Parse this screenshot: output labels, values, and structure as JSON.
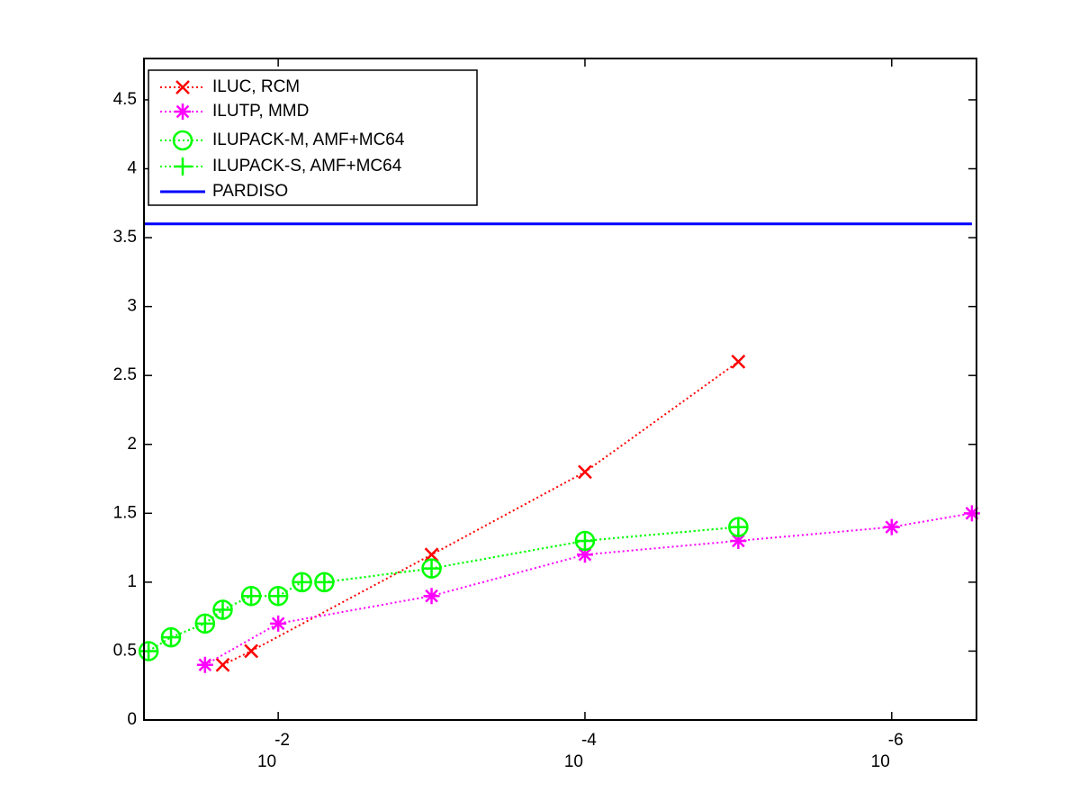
{
  "chart_data": {
    "type": "line",
    "xscale": "log",
    "xlim": [
      0.075,
      2.8e-07
    ],
    "ylim": [
      0,
      4.8
    ],
    "xticks": [
      {
        "value": 0.01,
        "label": "10",
        "exponent": "-2"
      },
      {
        "value": 0.0001,
        "label": "10",
        "exponent": "-4"
      },
      {
        "value": 1e-06,
        "label": "10",
        "exponent": "-6"
      }
    ],
    "yticks": [
      0,
      0.5,
      1,
      1.5,
      2,
      2.5,
      3,
      3.5,
      4,
      4.5
    ],
    "legend": "upper left",
    "series": [
      {
        "name": "ILUC, RCM",
        "color": "#ff0000",
        "marker": "x",
        "linestyle": "dotted",
        "x": [
          0.023,
          0.015,
          0.001,
          0.0001,
          1e-05
        ],
        "values": [
          0.4,
          0.5,
          1.2,
          1.8,
          2.6
        ]
      },
      {
        "name": "ILUTP, MMD",
        "color": "#ff00ff",
        "marker": "asterisk",
        "linestyle": "dotted",
        "x": [
          0.03,
          0.01,
          0.001,
          0.0001,
          1e-05,
          1e-06,
          3e-07
        ],
        "values": [
          0.4,
          0.7,
          0.9,
          1.2,
          1.3,
          1.4,
          1.5
        ]
      },
      {
        "name": "ILUPACK-M, AMF+MC64",
        "color": "#00ff00",
        "marker": "circle",
        "linestyle": "dotted",
        "x": [
          0.07,
          0.05,
          0.03,
          0.023,
          0.015,
          0.01,
          0.007,
          0.005,
          0.001,
          0.0001,
          1e-05
        ],
        "values": [
          0.5,
          0.6,
          0.7,
          0.8,
          0.9,
          0.9,
          1.0,
          1.0,
          1.1,
          1.3,
          1.4
        ]
      },
      {
        "name": "ILUPACK-S, AMF+MC64",
        "color": "#00ff00",
        "marker": "plus",
        "linestyle": "dotted",
        "x": [
          0.07,
          0.05,
          0.03,
          0.023,
          0.015,
          0.01,
          0.007,
          0.005,
          0.001,
          0.0001,
          1e-05
        ],
        "values": [
          0.5,
          0.6,
          0.7,
          0.8,
          0.9,
          0.9,
          1.0,
          1.0,
          1.1,
          1.3,
          1.4
        ]
      },
      {
        "name": "PARDISO",
        "color": "#0000ff",
        "marker": "none",
        "linestyle": "solid",
        "x": [
          0.075,
          3e-07
        ],
        "values": [
          3.6,
          3.6
        ]
      }
    ]
  }
}
